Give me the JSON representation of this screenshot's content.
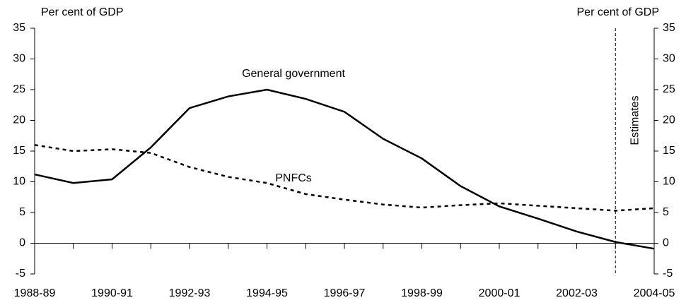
{
  "chart_data": {
    "type": "line",
    "y_label": "Per cent of GDP",
    "y2_label": "Per cent of GDP",
    "categories": [
      "1988-89",
      null,
      "1990-91",
      null,
      "1992-93",
      null,
      "1994-95",
      null,
      "1996-97",
      null,
      "1998-99",
      null,
      "2000-01",
      null,
      "2002-03",
      null,
      "2004-05"
    ],
    "series": [
      {
        "name": "General government",
        "color": "#000000",
        "line_style": "solid",
        "values": [
          11.2,
          9.8,
          10.4,
          15.6,
          22.0,
          23.9,
          25.0,
          23.5,
          21.4,
          17.0,
          13.8,
          9.3,
          6.0,
          4.0,
          1.9,
          0.2,
          -0.9
        ]
      },
      {
        "name": "PNFCs",
        "color": "#000000",
        "line_style": "dotted",
        "values": [
          16.0,
          15.0,
          15.3,
          14.7,
          12.4,
          10.8,
          9.8,
          8.0,
          7.1,
          6.3,
          5.8,
          6.2,
          6.5,
          6.1,
          5.7,
          5.3,
          5.7
        ]
      }
    ],
    "ylim": [
      -5,
      35
    ],
    "yticks": [
      -5,
      0,
      5,
      10,
      15,
      20,
      25,
      30,
      35
    ],
    "y2lim": [
      -5,
      35
    ],
    "y2ticks": [
      -5,
      0,
      5,
      10,
      15,
      20,
      25,
      30,
      35
    ],
    "vline": {
      "label": "Estimates",
      "index": 15
    },
    "grid": false
  }
}
